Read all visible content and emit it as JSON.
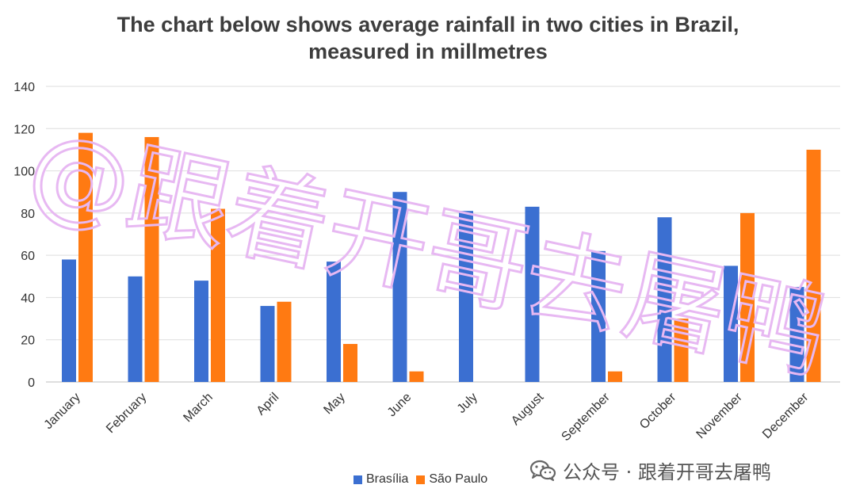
{
  "chart_data": {
    "type": "bar",
    "title_lines": [
      "The chart below shows average rainfall in two cities in Brazil,",
      "measured in millmetres"
    ],
    "categories": [
      "January",
      "February",
      "March",
      "April",
      "May",
      "June",
      "July",
      "August",
      "September",
      "October",
      "November",
      "December"
    ],
    "series": [
      {
        "name": "Brasília",
        "color": "#3b6fd1",
        "values": [
          58,
          50,
          48,
          36,
          57,
          90,
          81,
          83,
          62,
          78,
          55,
          45
        ]
      },
      {
        "name": "São Paulo",
        "color": "#ff7a12",
        "values": [
          118,
          116,
          82,
          38,
          18,
          5,
          0,
          0,
          5,
          30,
          80,
          110
        ]
      }
    ],
    "ylim": [
      0,
      140
    ],
    "yticks": [
      0,
      20,
      40,
      60,
      80,
      100,
      120,
      140
    ],
    "grid": true,
    "legend_position": "bottom-center",
    "xlabel": "",
    "ylabel": ""
  },
  "watermark": {
    "text": "@跟着开哥去屠鸭",
    "color": "#e7b8f2"
  },
  "footer": {
    "label": "公众号 · 跟着开哥去屠鸭",
    "icon": "wechat-icon"
  }
}
